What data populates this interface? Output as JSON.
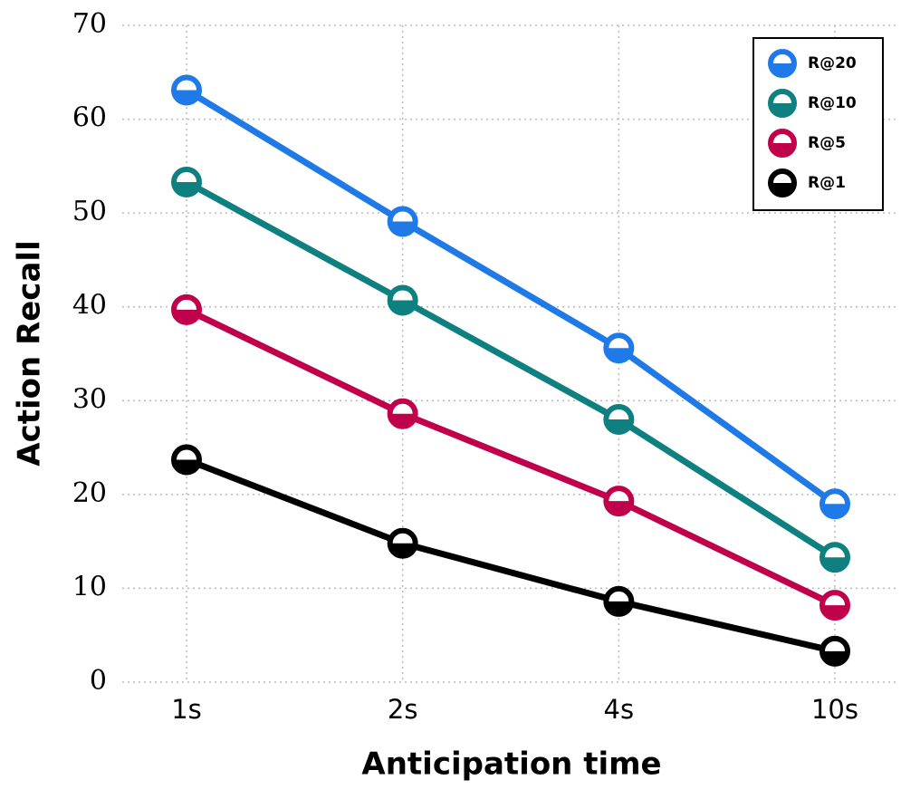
{
  "chart_data": {
    "type": "line",
    "x_label": "Anticipation time",
    "y_label": "Action Recall",
    "categories": [
      "1s",
      "2s",
      "4s",
      "10s"
    ],
    "series": [
      {
        "name": "R@20",
        "color": "#1f7ae8",
        "values": [
          63.1,
          49.1,
          35.6,
          19.0
        ]
      },
      {
        "name": "R@10",
        "color": "#0f8080",
        "values": [
          53.3,
          40.7,
          28.0,
          13.3
        ]
      },
      {
        "name": "R@5",
        "color": "#c0004a",
        "values": [
          39.7,
          28.6,
          19.3,
          8.2
        ]
      },
      {
        "name": "R@1",
        "color": "#000000",
        "values": [
          23.7,
          14.8,
          8.6,
          3.3
        ]
      }
    ],
    "ylim": [
      0,
      70
    ],
    "yticks": [
      0,
      10,
      20,
      30,
      40,
      50,
      60,
      70
    ],
    "grid": true,
    "legend": "upper right"
  }
}
